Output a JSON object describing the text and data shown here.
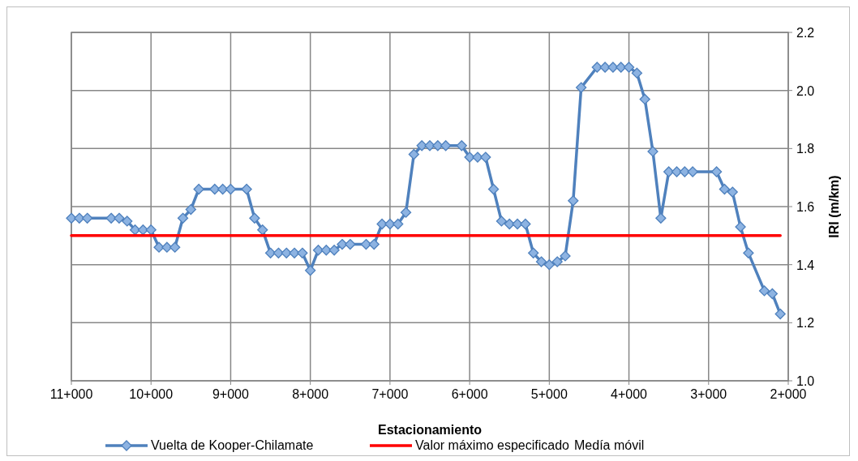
{
  "chart_data": {
    "type": "line",
    "xlabel": "Estacionamiento",
    "ylabel": "IRI (m/km)",
    "categories": [
      "11+000",
      null,
      null,
      null,
      null,
      null,
      null,
      null,
      null,
      null,
      "10+000",
      null,
      null,
      null,
      null,
      null,
      null,
      null,
      null,
      null,
      "9+000",
      null,
      null,
      null,
      null,
      null,
      null,
      null,
      null,
      null,
      "8+000",
      null,
      null,
      null,
      null,
      null,
      null,
      null,
      null,
      null,
      "7+000",
      null,
      null,
      null,
      null,
      null,
      null,
      null,
      null,
      null,
      "6+000",
      null,
      null,
      null,
      null,
      null,
      null,
      null,
      null,
      null,
      "5+000",
      null,
      null,
      null,
      null,
      null,
      null,
      null,
      null,
      null,
      "4+000",
      null,
      null,
      null,
      null,
      null,
      null,
      null,
      null,
      null,
      "3+000",
      null,
      null,
      null,
      null,
      null,
      null,
      null,
      null,
      null,
      "2+000"
    ],
    "ylim": [
      1.0,
      2.2
    ],
    "yticks": [
      {
        "value": 1.0,
        "label": "1.0"
      },
      {
        "value": 1.2,
        "label": "1.2"
      },
      {
        "value": 1.4,
        "label": "1.4"
      },
      {
        "value": 1.6,
        "label": "1.6"
      },
      {
        "value": 1.8,
        "label": "1.8"
      },
      {
        "value": 2.0,
        "label": "2.0"
      },
      {
        "value": 2.2,
        "label": "2.2"
      }
    ],
    "grid": true,
    "legend": "bottom",
    "series": [
      {
        "name": "Vuelta de Kooper-Chilamate",
        "color": "#4f81bd",
        "marker": "diamond",
        "values": [
          1.56,
          1.56,
          1.56,
          null,
          null,
          1.56,
          1.56,
          1.55,
          1.52,
          1.52,
          1.52,
          1.46,
          1.46,
          1.46,
          1.56,
          1.59,
          1.66,
          null,
          1.66,
          1.66,
          1.66,
          null,
          1.66,
          1.56,
          1.52,
          1.44,
          1.44,
          1.44,
          1.44,
          1.44,
          1.38,
          1.45,
          1.45,
          1.45,
          1.47,
          1.47,
          null,
          1.47,
          1.47,
          1.54,
          1.54,
          1.54,
          1.58,
          1.78,
          1.81,
          1.81,
          1.81,
          1.81,
          null,
          1.81,
          1.77,
          1.77,
          1.77,
          1.66,
          1.55,
          1.54,
          1.54,
          1.54,
          1.44,
          1.41,
          1.4,
          1.41,
          1.43,
          1.62,
          2.01,
          null,
          2.08,
          2.08,
          2.08,
          2.08,
          2.08,
          2.06,
          1.97,
          1.79,
          1.56,
          1.72,
          1.72,
          1.72,
          1.72,
          null,
          null,
          1.72,
          1.66,
          1.65,
          1.53,
          1.44,
          null,
          1.31,
          1.3,
          1.23,
          null
        ]
      },
      {
        "name": "Valor máximo especificado",
        "color": "#ff0000",
        "marker": "none",
        "values": [
          1.5,
          1.5,
          1.5,
          1.5,
          1.5,
          1.5,
          1.5,
          1.5,
          1.5,
          1.5,
          1.5,
          1.5,
          1.5,
          1.5,
          1.5,
          1.5,
          1.5,
          1.5,
          1.5,
          1.5,
          1.5,
          1.5,
          1.5,
          1.5,
          1.5,
          1.5,
          1.5,
          1.5,
          1.5,
          1.5,
          1.5,
          1.5,
          1.5,
          1.5,
          1.5,
          1.5,
          1.5,
          1.5,
          1.5,
          1.5,
          1.5,
          1.5,
          1.5,
          1.5,
          1.5,
          1.5,
          1.5,
          1.5,
          1.5,
          1.5,
          1.5,
          1.5,
          1.5,
          1.5,
          1.5,
          1.5,
          1.5,
          1.5,
          1.5,
          1.5,
          1.5,
          1.5,
          1.5,
          1.5,
          1.5,
          1.5,
          1.5,
          1.5,
          1.5,
          1.5,
          1.5,
          1.5,
          1.5,
          1.5,
          1.5,
          1.5,
          1.5,
          1.5,
          1.5,
          1.5,
          1.5,
          1.5,
          1.5,
          1.5,
          1.5,
          1.5,
          1.5,
          1.5,
          1.5,
          1.5,
          null
        ]
      }
    ],
    "annotations": [
      "Medía móvil"
    ]
  }
}
